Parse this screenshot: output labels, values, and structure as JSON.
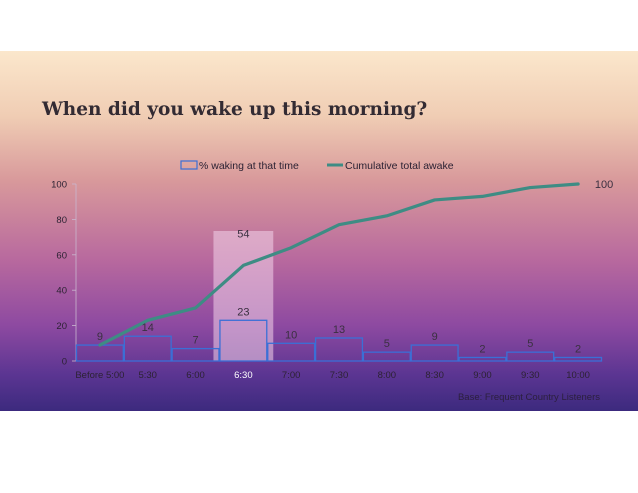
{
  "slide": {
    "title": "When did you wake up this morning?",
    "base_note": "Base: Frequent Country Listeners"
  },
  "colors": {
    "bar_outline": "#3b6fd6",
    "line": "#3e8c84",
    "highlight": "#f2d4e9"
  },
  "chart_data": {
    "type": "bar+line",
    "categories": [
      "Before 5:00",
      "5:30",
      "6:00",
      "6:30",
      "7:00",
      "7:30",
      "8:00",
      "8:30",
      "9:00",
      "9:30",
      "10:00"
    ],
    "series": [
      {
        "name": "% waking at that time",
        "type": "bar",
        "values": [
          9,
          14,
          7,
          23,
          10,
          13,
          5,
          9,
          2,
          5,
          2
        ],
        "labels": [
          "9",
          "14",
          "7",
          "23",
          "10",
          "13",
          "5",
          "9",
          "2",
          "5",
          "2"
        ]
      },
      {
        "name": "Cumulative total awake",
        "type": "line",
        "values": [
          9,
          23,
          30,
          54,
          64,
          77,
          82,
          91,
          93,
          98,
          100
        ],
        "labels": [
          "",
          "",
          "",
          "54",
          "",
          "",
          "",
          "",
          "",
          "",
          "100"
        ]
      }
    ],
    "y_ticks": [
      "0",
      "20",
      "40",
      "60",
      "80",
      "100"
    ],
    "ylim": [
      0,
      100
    ],
    "highlight_category": "6:30",
    "legend": "top-center",
    "grid": false
  }
}
